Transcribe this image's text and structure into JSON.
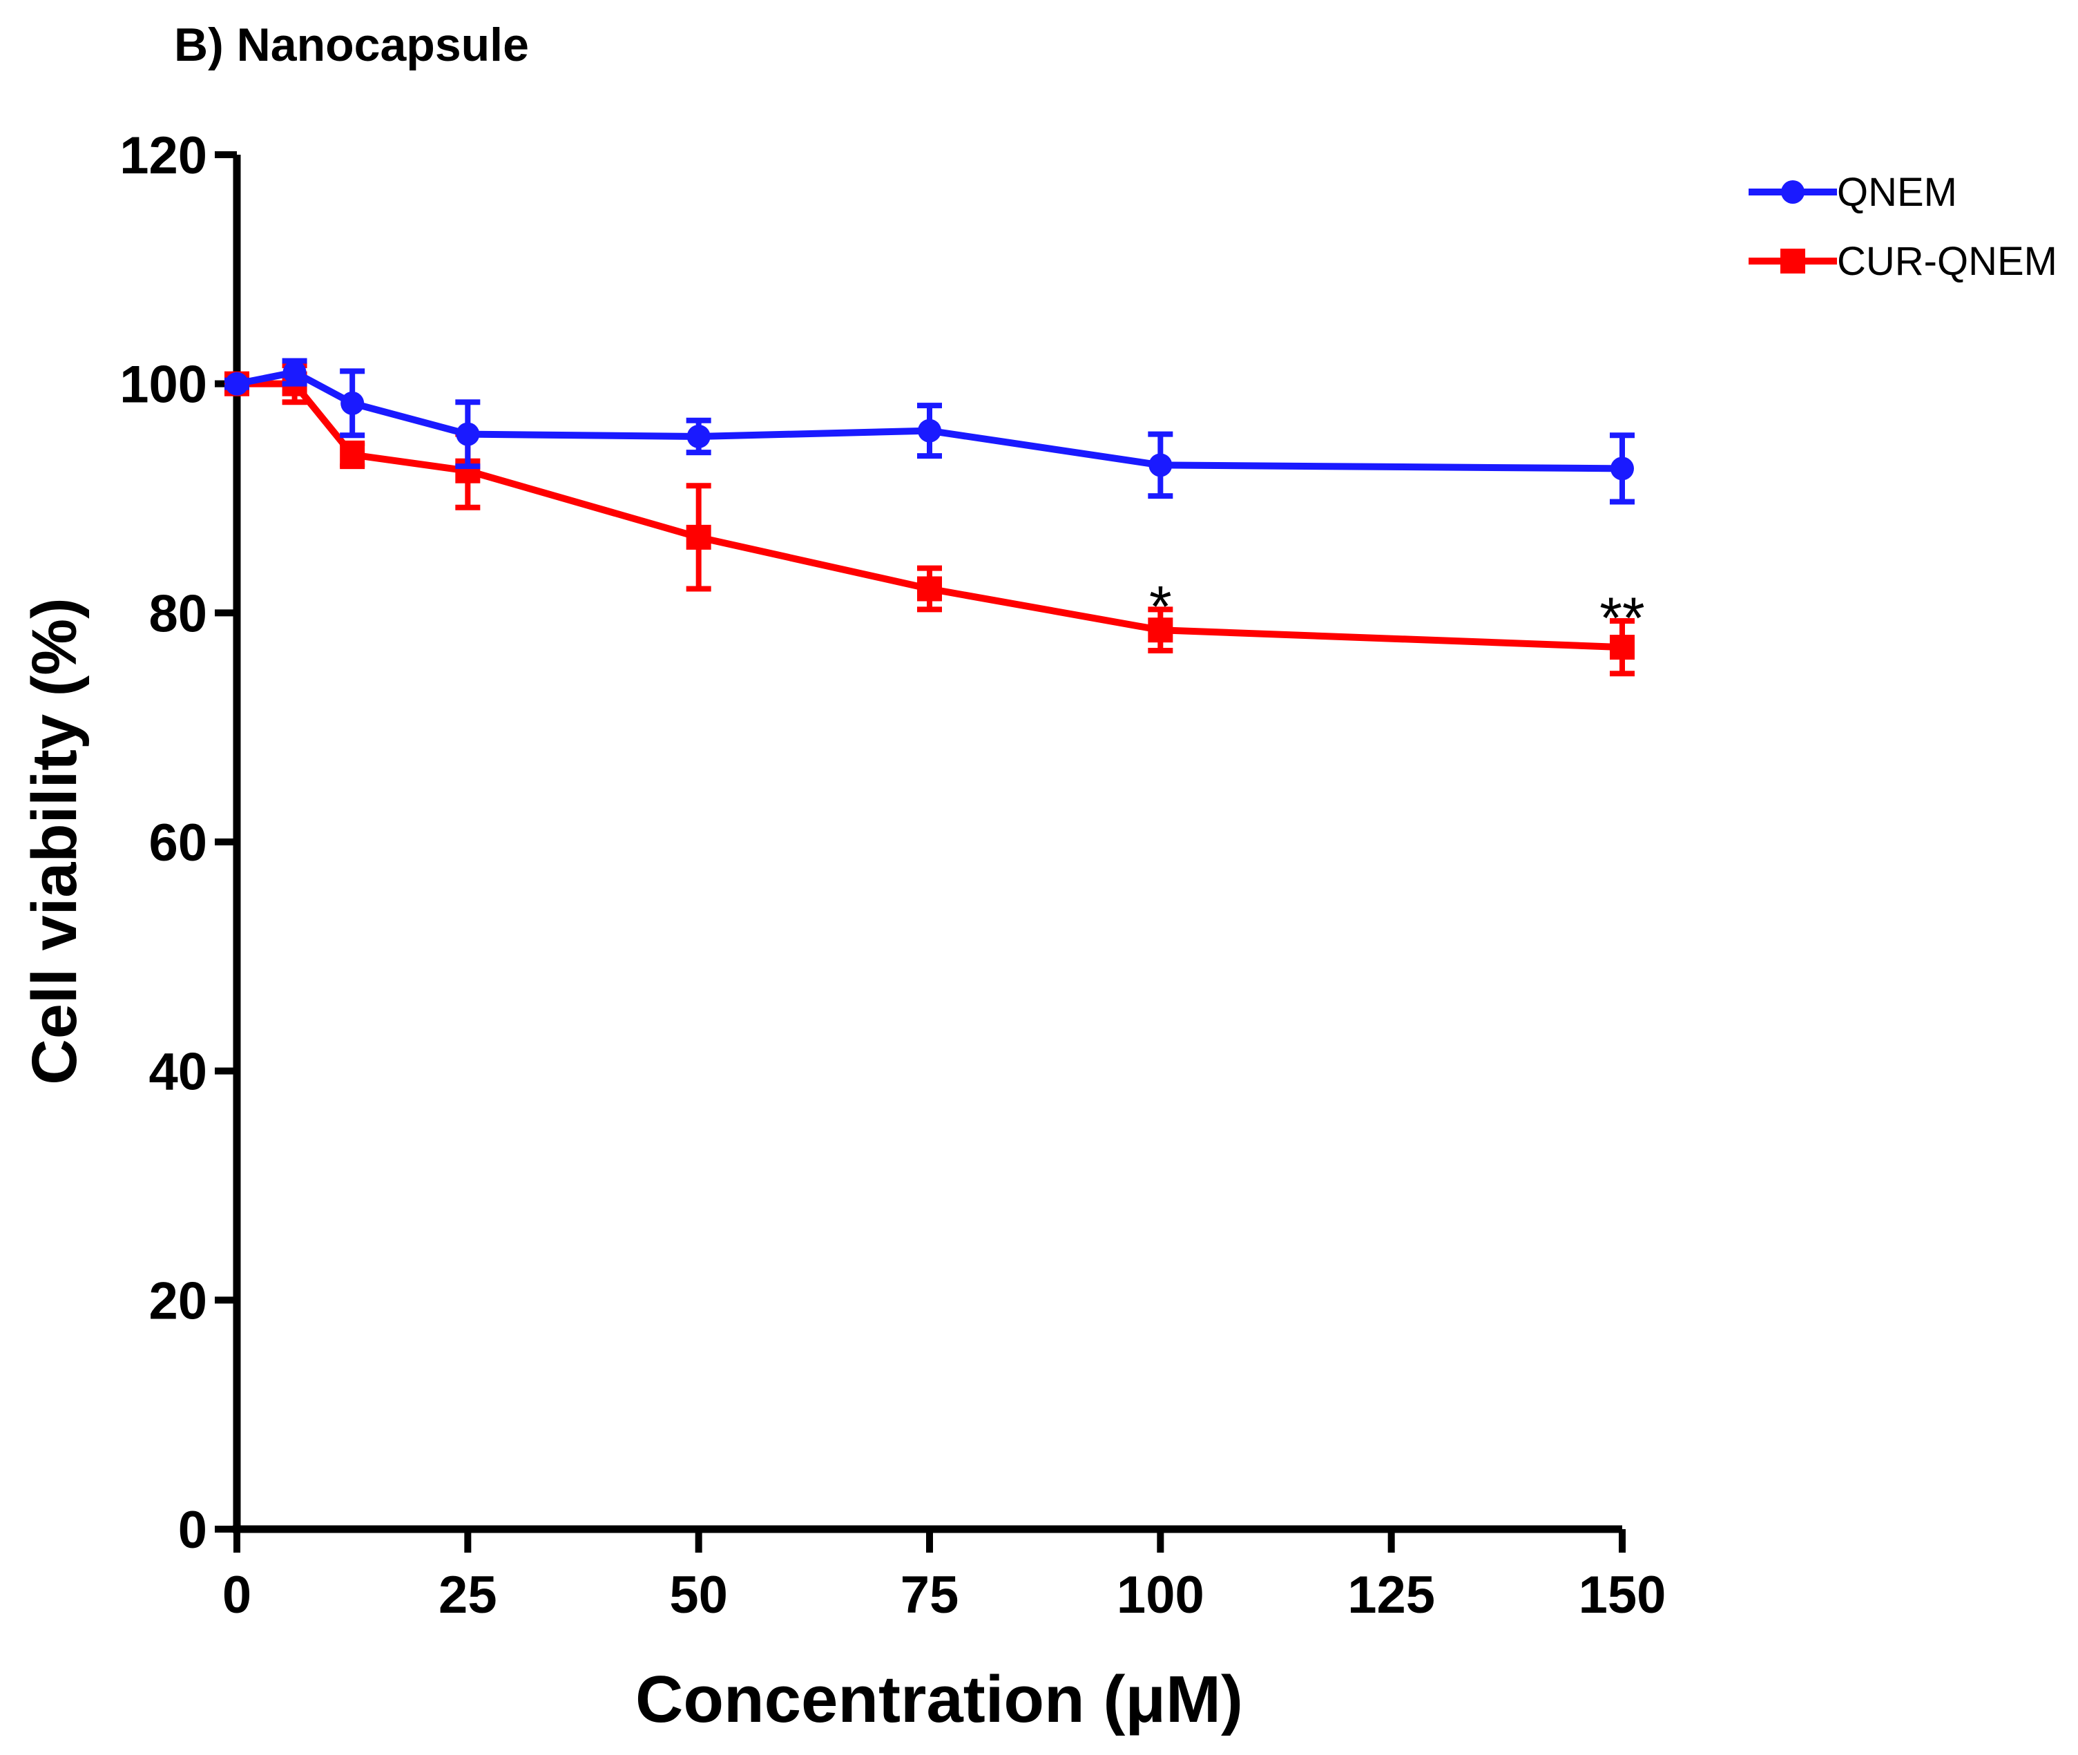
{
  "chart_data": {
    "type": "line",
    "title": "B) Nanocapsule",
    "xlabel": "Concentration (μM)",
    "ylabel": "Cell viability (%)",
    "xlim": [
      0,
      150
    ],
    "ylim": [
      0,
      120
    ],
    "x_ticks": [
      0,
      25,
      50,
      75,
      100,
      125,
      150
    ],
    "y_ticks": [
      0,
      20,
      40,
      60,
      80,
      100,
      120
    ],
    "grid": false,
    "legend_position": "top-right",
    "series": [
      {
        "name": "QNEM",
        "color": "#1a1aff",
        "marker": "circle",
        "x": [
          0,
          6.25,
          12.5,
          25,
          50,
          75,
          100,
          150
        ],
        "y": [
          100,
          101,
          98.3,
          95.6,
          95.4,
          95.9,
          92.9,
          92.6
        ],
        "err": [
          0.3,
          1.0,
          2.8,
          2.8,
          1.4,
          2.2,
          2.7,
          2.9
        ]
      },
      {
        "name": "CUR-QNEM",
        "color": "#ff0000",
        "marker": "square",
        "x": [
          0,
          6.25,
          12.5,
          25,
          50,
          75,
          100,
          150
        ],
        "y": [
          100,
          100,
          93.8,
          92.4,
          86.6,
          82.1,
          78.5,
          77.0
        ],
        "err": [
          0.3,
          1.6,
          1.0,
          3.2,
          4.5,
          1.8,
          1.8,
          2.3
        ]
      }
    ],
    "annotations": [
      {
        "text": "*",
        "x": 100,
        "y": 80.5
      },
      {
        "text": "**",
        "x": 150,
        "y": 79.5
      }
    ]
  }
}
